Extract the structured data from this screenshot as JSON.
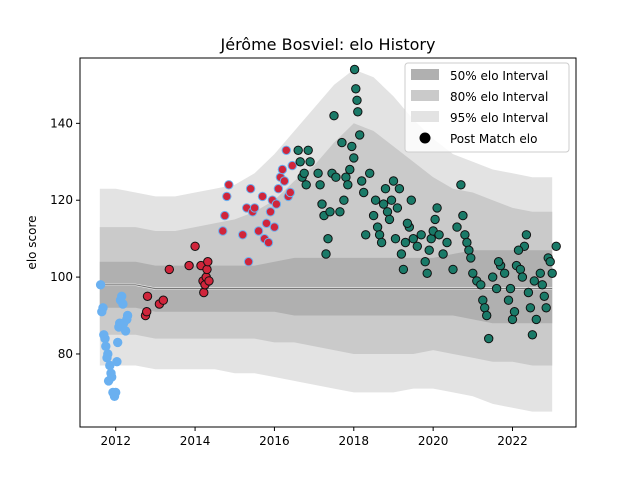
{
  "chart_data": {
    "type": "scatter",
    "title": "Jérôme Bosviel: elo History",
    "xlabel": "",
    "ylabel": "elo score",
    "xlim": [
      2011.1,
      2023.6
    ],
    "ylim": [
      61,
      157
    ],
    "xticks": [
      2012,
      2014,
      2016,
      2018,
      2020,
      2022
    ],
    "yticks": [
      80,
      100,
      120,
      140
    ],
    "grid": false,
    "legend_position": "top-right",
    "legend": [
      {
        "label": "50% elo Interval",
        "kind": "band",
        "color": "#b0b0b0"
      },
      {
        "label": "80% elo Interval",
        "kind": "band",
        "color": "#cacaca"
      },
      {
        "label": "95% elo Interval",
        "kind": "band",
        "color": "#e3e3e3"
      },
      {
        "label": "Post Match elo",
        "kind": "marker",
        "color": "#000000"
      }
    ],
    "bands": {
      "x": [
        2011.6,
        2012.0,
        2012.5,
        2013.0,
        2013.5,
        2014.0,
        2014.5,
        2015.0,
        2015.5,
        2016.0,
        2016.5,
        2017.0,
        2017.5,
        2018.0,
        2018.5,
        2019.0,
        2019.5,
        2020.0,
        2020.5,
        2021.0,
        2021.5,
        2022.0,
        2022.5,
        2023.0
      ],
      "mean": [
        98,
        98,
        98,
        97,
        97,
        97,
        97,
        97,
        97,
        97,
        97,
        97,
        97,
        97,
        97,
        97,
        97,
        97,
        97,
        97,
        97,
        97,
        97,
        97
      ],
      "p50": [
        [
          92,
          104
        ],
        [
          92,
          104
        ],
        [
          92,
          104
        ],
        [
          91,
          103
        ],
        [
          91,
          103
        ],
        [
          91,
          103
        ],
        [
          91,
          103
        ],
        [
          91,
          103
        ],
        [
          91,
          103
        ],
        [
          91,
          104
        ],
        [
          90,
          105
        ],
        [
          90,
          105
        ],
        [
          90,
          105
        ],
        [
          90,
          105
        ],
        [
          90,
          105
        ],
        [
          90,
          105
        ],
        [
          90,
          105
        ],
        [
          90,
          105
        ],
        [
          90,
          106
        ],
        [
          89,
          107
        ],
        [
          88,
          107
        ],
        [
          88,
          107
        ],
        [
          88,
          107
        ],
        [
          88,
          107
        ]
      ],
      "p80": [
        [
          85,
          113
        ],
        [
          85,
          113
        ],
        [
          85,
          113
        ],
        [
          84,
          112
        ],
        [
          84,
          112
        ],
        [
          84,
          113
        ],
        [
          84,
          114
        ],
        [
          84,
          115
        ],
        [
          84,
          117
        ],
        [
          83,
          120
        ],
        [
          83,
          125
        ],
        [
          82,
          129
        ],
        [
          81,
          135
        ],
        [
          80,
          140
        ],
        [
          80,
          138
        ],
        [
          80,
          134
        ],
        [
          80,
          130
        ],
        [
          81,
          126
        ],
        [
          80,
          123
        ],
        [
          79,
          122
        ],
        [
          78,
          120
        ],
        [
          78,
          118
        ],
        [
          77,
          117
        ],
        [
          77,
          117
        ]
      ],
      "p95": [
        [
          77,
          123
        ],
        [
          77,
          123
        ],
        [
          77,
          122
        ],
        [
          76,
          121
        ],
        [
          76,
          121
        ],
        [
          76,
          122
        ],
        [
          76,
          123
        ],
        [
          75,
          124
        ],
        [
          75,
          127
        ],
        [
          74,
          132
        ],
        [
          73,
          138
        ],
        [
          72,
          144
        ],
        [
          71,
          150
        ],
        [
          70,
          154
        ],
        [
          70,
          152
        ],
        [
          70,
          147
        ],
        [
          71,
          141
        ],
        [
          71,
          136
        ],
        [
          70,
          132
        ],
        [
          69,
          130
        ],
        [
          67,
          128
        ],
        [
          66,
          127
        ],
        [
          65,
          126
        ],
        [
          65,
          126
        ]
      ]
    },
    "series": [
      {
        "fill": "#6ab0f0",
        "edge": "#6ab0f0",
        "points": [
          [
            2011.62,
            98
          ],
          [
            2011.65,
            91
          ],
          [
            2011.68,
            92
          ],
          [
            2011.7,
            85
          ],
          [
            2011.73,
            84
          ],
          [
            2011.75,
            82
          ],
          [
            2011.78,
            79
          ],
          [
            2011.8,
            80
          ],
          [
            2011.82,
            73
          ],
          [
            2011.85,
            77
          ],
          [
            2011.88,
            75
          ],
          [
            2011.9,
            74
          ],
          [
            2011.93,
            70
          ],
          [
            2011.97,
            69
          ],
          [
            2012.0,
            70
          ],
          [
            2012.03,
            78
          ],
          [
            2012.05,
            83
          ],
          [
            2012.08,
            87
          ],
          [
            2012.1,
            88
          ],
          [
            2012.12,
            94
          ],
          [
            2012.15,
            95
          ],
          [
            2012.18,
            93
          ],
          [
            2012.2,
            88
          ],
          [
            2012.25,
            86
          ],
          [
            2012.28,
            89
          ],
          [
            2012.3,
            90
          ]
        ]
      },
      {
        "fill": "#d0253b",
        "edge": "#111111",
        "points": [
          [
            2012.75,
            90
          ],
          [
            2012.78,
            91
          ],
          [
            2012.8,
            95
          ],
          [
            2013.1,
            93
          ],
          [
            2013.2,
            94
          ],
          [
            2013.35,
            102
          ],
          [
            2013.85,
            103
          ],
          [
            2014.0,
            108
          ],
          [
            2014.15,
            103
          ],
          [
            2014.2,
            99
          ],
          [
            2014.22,
            96
          ],
          [
            2014.25,
            98
          ],
          [
            2014.28,
            100
          ],
          [
            2014.3,
            102
          ],
          [
            2014.32,
            104
          ],
          [
            2014.35,
            99
          ]
        ]
      },
      {
        "fill": "#d0253b",
        "edge": "#6ab0f0",
        "points": [
          [
            2014.7,
            112
          ],
          [
            2014.75,
            116
          ],
          [
            2014.8,
            121
          ],
          [
            2014.85,
            124
          ],
          [
            2015.2,
            111
          ],
          [
            2015.3,
            118
          ],
          [
            2015.35,
            104
          ],
          [
            2015.4,
            123
          ],
          [
            2015.45,
            117
          ],
          [
            2015.5,
            118
          ],
          [
            2015.6,
            112
          ],
          [
            2015.7,
            121
          ],
          [
            2015.75,
            110
          ],
          [
            2015.8,
            114
          ],
          [
            2015.85,
            109
          ],
          [
            2015.9,
            117
          ],
          [
            2015.95,
            120
          ],
          [
            2016.0,
            113
          ],
          [
            2016.05,
            119
          ],
          [
            2016.1,
            123
          ],
          [
            2016.15,
            126
          ],
          [
            2016.2,
            128
          ],
          [
            2016.25,
            125
          ],
          [
            2016.3,
            133
          ],
          [
            2016.35,
            121
          ],
          [
            2016.4,
            122
          ],
          [
            2016.45,
            129
          ]
        ]
      },
      {
        "fill": "#1a7a68",
        "edge": "#111111",
        "points": [
          [
            2016.6,
            133
          ],
          [
            2016.65,
            130
          ],
          [
            2016.7,
            126
          ],
          [
            2016.75,
            127
          ],
          [
            2016.8,
            124
          ],
          [
            2016.85,
            133
          ],
          [
            2016.9,
            130
          ],
          [
            2017.1,
            127
          ],
          [
            2017.15,
            124
          ],
          [
            2017.2,
            119
          ],
          [
            2017.25,
            116
          ],
          [
            2017.3,
            106
          ],
          [
            2017.35,
            110
          ],
          [
            2017.4,
            117
          ],
          [
            2017.45,
            127
          ],
          [
            2017.5,
            142
          ],
          [
            2017.55,
            126
          ],
          [
            2017.65,
            117
          ],
          [
            2017.75,
            120
          ],
          [
            2017.8,
            126
          ],
          [
            2017.85,
            124
          ],
          [
            2017.9,
            128
          ],
          [
            2017.95,
            134
          ],
          [
            2018.0,
            131
          ],
          [
            2018.02,
            154
          ],
          [
            2018.05,
            149
          ],
          [
            2018.08,
            146
          ],
          [
            2018.1,
            143
          ],
          [
            2018.15,
            137
          ],
          [
            2018.2,
            125
          ],
          [
            2018.25,
            122
          ],
          [
            2018.3,
            111
          ],
          [
            2018.5,
            116
          ],
          [
            2018.55,
            120
          ],
          [
            2018.6,
            113
          ],
          [
            2018.65,
            111
          ],
          [
            2018.7,
            109
          ],
          [
            2018.75,
            119
          ],
          [
            2018.8,
            123
          ],
          [
            2018.85,
            117
          ],
          [
            2018.9,
            115
          ],
          [
            2018.95,
            120
          ],
          [
            2019.0,
            125
          ],
          [
            2019.05,
            110
          ],
          [
            2019.1,
            118
          ],
          [
            2019.15,
            123
          ],
          [
            2019.2,
            106
          ],
          [
            2019.25,
            102
          ],
          [
            2019.3,
            109
          ],
          [
            2019.4,
            113
          ],
          [
            2019.5,
            110
          ],
          [
            2019.6,
            108
          ],
          [
            2019.7,
            111
          ],
          [
            2019.8,
            104
          ],
          [
            2019.85,
            101
          ],
          [
            2019.9,
            107
          ],
          [
            2019.95,
            110
          ],
          [
            2020.0,
            112
          ],
          [
            2020.05,
            115
          ],
          [
            2020.1,
            118
          ],
          [
            2020.15,
            111
          ],
          [
            2020.25,
            106
          ],
          [
            2020.35,
            109
          ],
          [
            2020.5,
            102
          ],
          [
            2020.7,
            124
          ],
          [
            2020.75,
            116
          ],
          [
            2020.8,
            111
          ],
          [
            2020.85,
            109
          ],
          [
            2020.9,
            107
          ],
          [
            2020.95,
            105
          ],
          [
            2021.0,
            101
          ],
          [
            2021.1,
            99
          ],
          [
            2021.2,
            98
          ],
          [
            2021.25,
            94
          ],
          [
            2021.3,
            92
          ],
          [
            2021.35,
            90
          ],
          [
            2021.4,
            84
          ],
          [
            2021.5,
            100
          ],
          [
            2021.6,
            97
          ],
          [
            2021.7,
            103
          ],
          [
            2021.8,
            101
          ],
          [
            2021.9,
            94
          ],
          [
            2022.0,
            89
          ],
          [
            2022.05,
            91
          ],
          [
            2022.1,
            103
          ],
          [
            2022.2,
            102
          ],
          [
            2022.25,
            100
          ],
          [
            2022.3,
            108
          ],
          [
            2022.4,
            96
          ],
          [
            2022.45,
            92
          ],
          [
            2022.5,
            85
          ],
          [
            2022.6,
            89
          ],
          [
            2022.7,
            101
          ],
          [
            2022.75,
            98
          ],
          [
            2022.8,
            95
          ],
          [
            2022.85,
            92
          ],
          [
            2022.9,
            105
          ],
          [
            2022.95,
            104
          ],
          [
            2023.0,
            101
          ],
          [
            2023.1,
            108
          ],
          [
            2022.35,
            111
          ],
          [
            2022.15,
            107
          ],
          [
            2021.95,
            97
          ],
          [
            2021.65,
            104
          ],
          [
            2020.6,
            113
          ],
          [
            2019.45,
            120
          ],
          [
            2017.7,
            135
          ],
          [
            2018.4,
            127
          ],
          [
            2019.35,
            114
          ],
          [
            2022.55,
            99
          ]
        ]
      }
    ]
  }
}
